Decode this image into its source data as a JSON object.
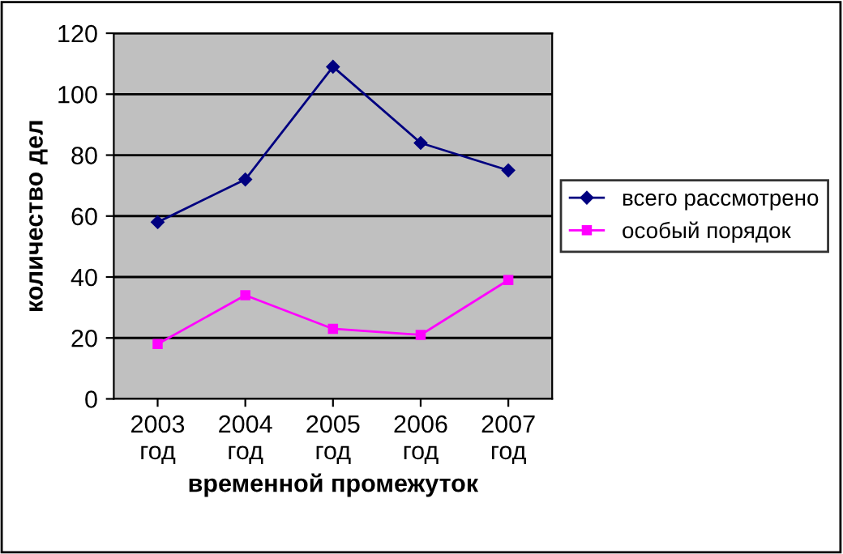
{
  "chart_data": {
    "type": "line",
    "xlabel": "временной промежуток",
    "ylabel": "количество дел",
    "categories": [
      "2003\nгод",
      "2004\nгод",
      "2005\nгод",
      "2006\nгод",
      "2007\nгод"
    ],
    "series": [
      {
        "name": "всего рассмотрено",
        "color": "#000080",
        "marker": "diamond",
        "values": [
          58,
          72,
          109,
          84,
          75
        ]
      },
      {
        "name": "особый порядок",
        "color": "#ff00ff",
        "marker": "square",
        "values": [
          18,
          34,
          23,
          21,
          39
        ]
      }
    ],
    "ylim": [
      0,
      120
    ],
    "yticks": [
      0,
      20,
      40,
      60,
      80,
      100,
      120
    ],
    "grid": "y",
    "legend": "right",
    "line_style": "solid"
  }
}
